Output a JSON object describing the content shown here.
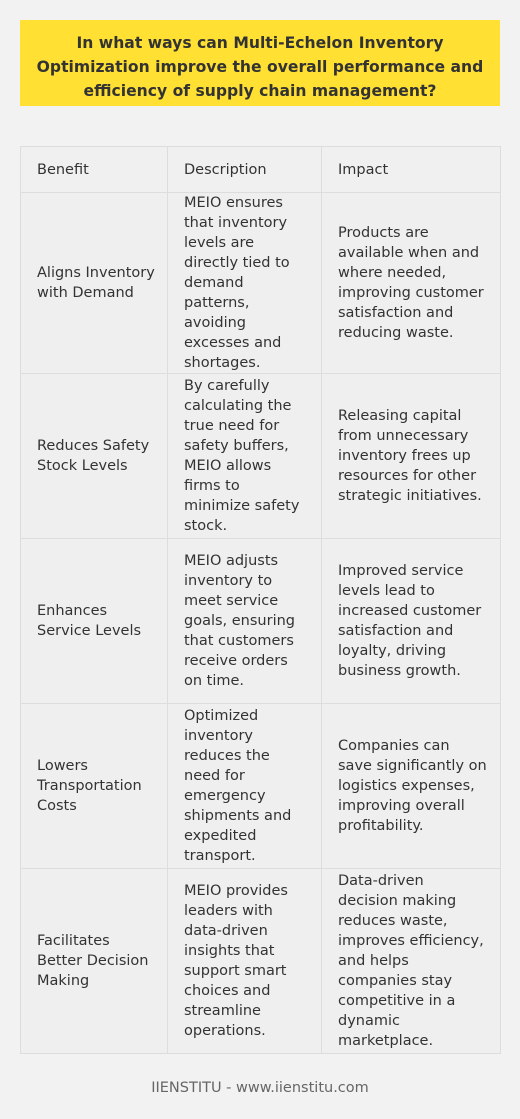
{
  "question": "In what ways can Multi-Echelon Inventory Optimization improve the overall performance and efficiency of supply chain management?",
  "table": {
    "headers": [
      "Benefit",
      "Description",
      "Impact"
    ],
    "rows": [
      {
        "benefit": "Aligns Inventory with Demand",
        "description": "MEIO ensures that inventory levels are directly tied to demand patterns, avoiding excesses and shortages.",
        "impact": "Products are available when and where needed, improving customer satisfaction and reducing waste."
      },
      {
        "benefit": "Reduces Safety Stock Levels",
        "description": "By carefully calculating the true need for safety buffers, MEIO allows firms to minimize safety stock.",
        "impact": "Releasing capital from unnecessary inventory frees up resources for other strategic initiatives."
      },
      {
        "benefit": "Enhances Service Levels",
        "description": "MEIO adjusts inventory to meet service goals, ensuring that customers receive orders on time.",
        "impact": "Improved service levels lead to increased customer satisfaction and loyalty, driving business growth."
      },
      {
        "benefit": "Lowers Transportation Costs",
        "description": "Optimized inventory reduces the need for emergency shipments and expedited transport.",
        "impact": "Companies can save significantly on logistics expenses, improving overall profitability."
      },
      {
        "benefit": "Facilitates Better Decision Making",
        "description": "MEIO provides leaders with data-driven insights that support smart choices and streamline operations.",
        "impact": "Data-driven decision making reduces waste, improves efficiency, and helps companies stay competitive in a dynamic marketplace."
      }
    ]
  },
  "footer": "IIENSTITU - www.iienstitu.com",
  "colors": {
    "question_background": "#ffe033",
    "page_background": "#f2f2f2",
    "table_background": "#efefef",
    "border": "#dddddd",
    "text": "#333333",
    "footer_text": "#666666"
  }
}
